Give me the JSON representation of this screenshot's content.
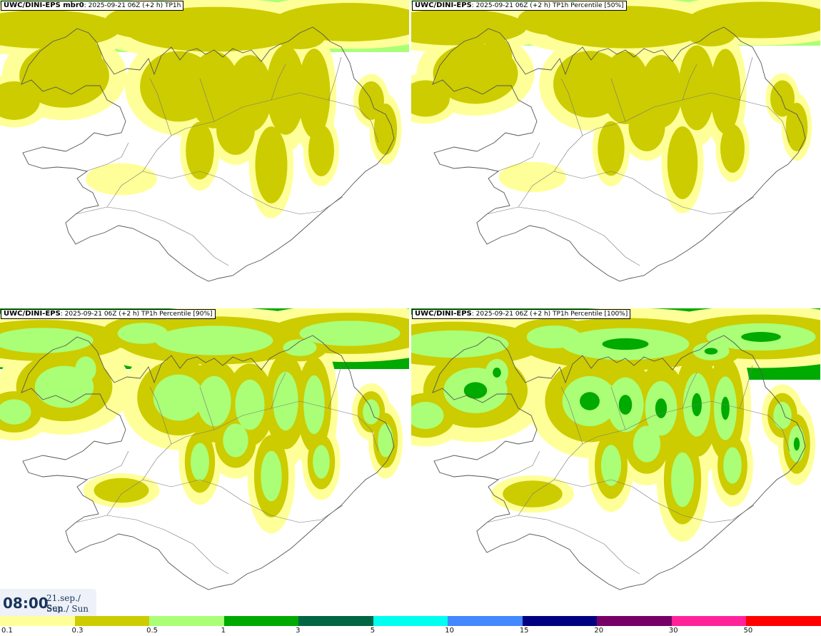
{
  "panels": [
    {
      "title_bold": "UWC/DINI-EPS mbr0",
      "title_rest": ": 2025-09-21 06Z (+2 h) TP1h",
      "intensity": 0.55
    },
    {
      "title_bold": "UWC/DINI-EPS",
      "title_rest": ": 2025-09-21 06Z (+2 h) TP1h Percentile [50%]",
      "intensity": 0.4
    },
    {
      "title_bold": "UWC/DINI-EPS",
      "title_rest": ": 2025-09-21 06Z (+2 h) TP1h Percentile [90%]",
      "intensity": 0.75
    },
    {
      "title_bold": "UWC/DINI-EPS",
      "title_rest": ": 2025-09-21 06Z (+2 h) TP1h Percentile [100%]",
      "intensity": 1.0
    }
  ],
  "time": {
    "clock": "08:00",
    "date_line1": "21.sep./ Sep",
    "date_line2": "Sun./ Sun"
  },
  "legend": [
    {
      "label": "0.1",
      "color": "#ffff99"
    },
    {
      "label": "0.3",
      "color": "#cccc00"
    },
    {
      "label": "0.5",
      "color": "#aaff77"
    },
    {
      "label": "1",
      "color": "#00aa00"
    },
    {
      "label": "3",
      "color": "#006644"
    },
    {
      "label": "5",
      "color": "#00ffee"
    },
    {
      "label": "10",
      "color": "#4488ff"
    },
    {
      "label": "15",
      "color": "#000080"
    },
    {
      "label": "20",
      "color": "#770066"
    },
    {
      "label": "30",
      "color": "#ff2299"
    },
    {
      "label": "50",
      "color": "#ff0000"
    }
  ]
}
